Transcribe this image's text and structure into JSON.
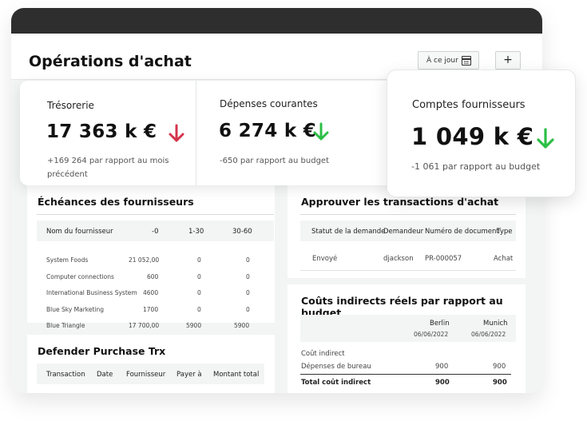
{
  "header": {
    "title": "Opérations d'achat",
    "date_button": "À ce jour",
    "add_button": "+"
  },
  "kpis": [
    {
      "label": "Trésorerie",
      "value": "17 363 k €",
      "trend": "down",
      "trend_color": "#d4344d",
      "sub_line1": "+169 264 par rapport au mois",
      "sub_line2": "précédent"
    },
    {
      "label": "Dépenses courantes",
      "value": "6 274 k €",
      "trend": "down",
      "trend_color": "#2bbf45",
      "sub_line1": "-650 par rapport au budget",
      "sub_line2": ""
    },
    {
      "label": "Comptes fournisseurs",
      "value": "1 049 k €",
      "trend": "down",
      "trend_color": "#2bbf45",
      "sub_line1": "-1 061 par rapport au budget",
      "sub_line2": ""
    }
  ],
  "echeances": {
    "title": "Échéances des fournisseurs",
    "columns": [
      "Nom du fournisseur",
      "-0",
      "1-30",
      "30-60"
    ],
    "rows": [
      [
        "System Foods",
        "21 052,00",
        "0",
        "0"
      ],
      [
        "Computer connections",
        "600",
        "0",
        "0"
      ],
      [
        "International Business System",
        "4600",
        "0",
        "0"
      ],
      [
        "Blue Sky Marketing",
        "1700",
        "0",
        "0"
      ],
      [
        "Blue Triangle",
        "17 700,00",
        "5900",
        "5900"
      ]
    ]
  },
  "approuver": {
    "title": "Approuver les transactions d'achat",
    "columns": [
      "Statut de la demande",
      "Demandeur",
      "Numéro de document",
      "Type"
    ],
    "rows": [
      [
        "Envoyé",
        "djackson",
        "PR-000057",
        "Achat"
      ]
    ]
  },
  "couts": {
    "title": "Coûts indirects réels par rapport au budget",
    "columns": [
      {
        "name": "Berlin",
        "date": "06/06/2022"
      },
      {
        "name": "Munich",
        "date": "06/06/2022"
      }
    ],
    "group_label": "Coût indirect",
    "rows": [
      {
        "label": "Dépenses de bureau",
        "values": [
          "900",
          "900"
        ]
      }
    ],
    "total": {
      "label": "Total coût indirect",
      "values": [
        "900",
        "900"
      ]
    }
  },
  "defender": {
    "title": "Defender Purchase Trx",
    "columns": [
      "Transaction",
      "Date",
      "Fournisseur",
      "Payer à",
      "Montant total"
    ]
  },
  "icons": [
    "calendar-icon",
    "plus-icon",
    "arrow-down-icon"
  ]
}
